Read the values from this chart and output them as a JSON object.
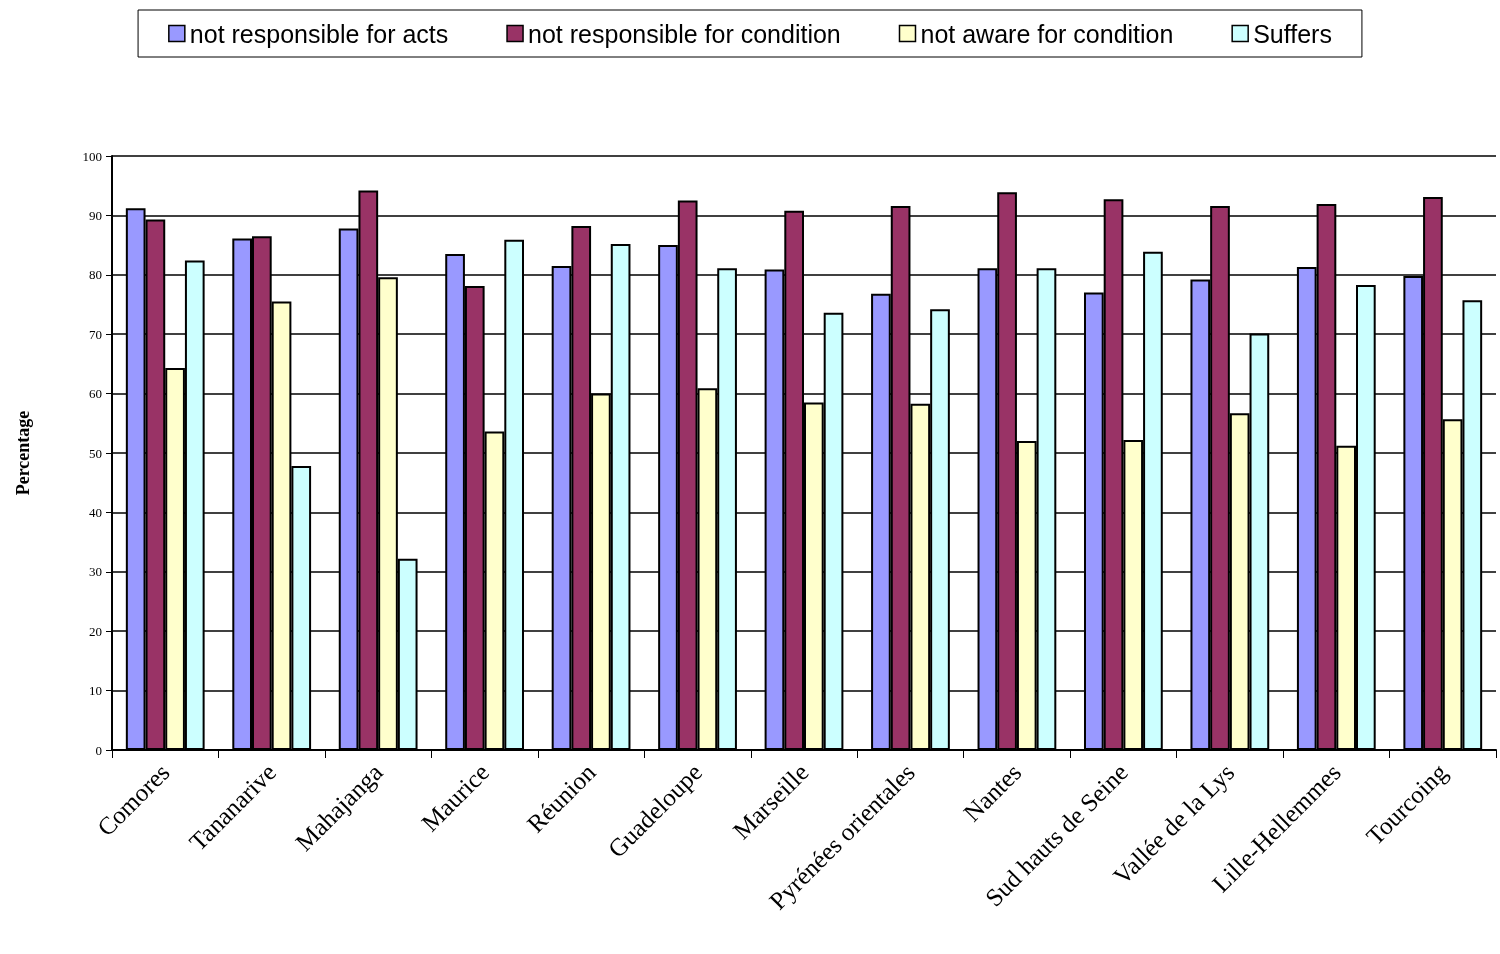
{
  "chart_data": {
    "type": "bar",
    "ylabel": "Percentage",
    "categories": [
      "Comores",
      "Tananarive",
      "Mahajanga",
      "Maurice",
      "Réunion",
      "Guadeloupe",
      "Marseille",
      "Pyrénées orientales",
      "Nantes",
      "Sud hauts de Seine",
      "Vallée de la Lys",
      "Lille-Hellemmes",
      "Tourcoing"
    ],
    "series": [
      {
        "name": "not responsible for acts",
        "color": "#9999ff",
        "values": [
          91.2,
          86.1,
          87.8,
          83.5,
          81.5,
          85.0,
          80.9,
          76.8,
          81.1,
          77.0,
          79.2,
          81.3,
          79.8
        ]
      },
      {
        "name": "not responsible for condition",
        "color": "#993366",
        "values": [
          89.3,
          86.5,
          94.2,
          78.1,
          88.2,
          92.5,
          90.8,
          91.6,
          93.9,
          92.7,
          91.6,
          91.9,
          93.1
        ]
      },
      {
        "name": "not aware for condition",
        "color": "#ffffcc",
        "values": [
          64.3,
          75.5,
          79.6,
          53.6,
          60.0,
          60.9,
          58.5,
          58.3,
          52.0,
          52.2,
          56.7,
          51.2,
          55.7
        ]
      },
      {
        "name": "Suffers",
        "color": "#ccffff",
        "values": [
          82.4,
          47.8,
          32.2,
          85.9,
          85.2,
          81.1,
          73.6,
          74.2,
          81.1,
          83.9,
          70.1,
          78.3,
          75.7
        ]
      }
    ],
    "ylim": [
      0,
      100
    ],
    "yticks": [
      0,
      10,
      20,
      30,
      40,
      50,
      60,
      70,
      80,
      90,
      100
    ],
    "grid": "y",
    "legend": "top"
  }
}
